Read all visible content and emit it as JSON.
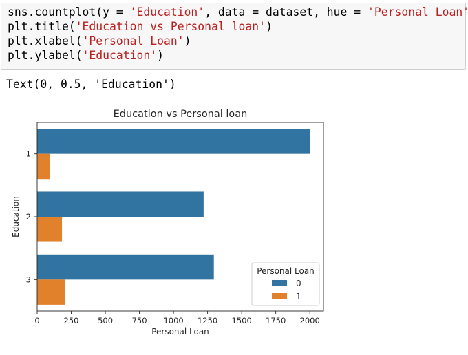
{
  "notebook": {
    "code_lines": [
      [
        {
          "text": "sns.countplot(y = ",
          "kind": "plain"
        },
        {
          "text": "'Education'",
          "kind": "str"
        },
        {
          "text": ", data = dataset, hue = ",
          "kind": "plain"
        },
        {
          "text": "'Personal Loan'",
          "kind": "str"
        },
        {
          "text": ")",
          "kind": "plain"
        }
      ],
      [
        {
          "text": "plt.title(",
          "kind": "plain"
        },
        {
          "text": "'Education vs Personal loan'",
          "kind": "str"
        },
        {
          "text": ")",
          "kind": "plain"
        }
      ],
      [
        {
          "text": "plt.xlabel(",
          "kind": "plain"
        },
        {
          "text": "'Personal Loan'",
          "kind": "str"
        },
        {
          "text": ")",
          "kind": "plain"
        }
      ],
      [
        {
          "text": "plt.ylabel(",
          "kind": "plain"
        },
        {
          "text": "'Education'",
          "kind": "str"
        },
        {
          "text": ")",
          "kind": "plain"
        }
      ]
    ],
    "output_text": "Text(0, 0.5, 'Education')"
  },
  "colors": {
    "code_string": "#ba2121",
    "series_0": "#3274a1",
    "series_1": "#e1812c"
  },
  "chart_data": {
    "type": "bar",
    "orientation": "horizontal",
    "title": "Education vs Personal loan",
    "xlabel": "Personal Loan",
    "ylabel": "Education",
    "categories": [
      "1",
      "2",
      "3"
    ],
    "series": [
      {
        "name": "0",
        "values": [
          2003,
          1221,
          1296
        ]
      },
      {
        "name": "1",
        "values": [
          93,
          182,
          205
        ]
      }
    ],
    "xlim": [
      0,
      2100
    ],
    "xticks": [
      0,
      250,
      500,
      750,
      1000,
      1250,
      1500,
      1750,
      2000
    ],
    "grid": false,
    "legend": {
      "title": "Personal Loan",
      "placement": "lower-right"
    }
  }
}
